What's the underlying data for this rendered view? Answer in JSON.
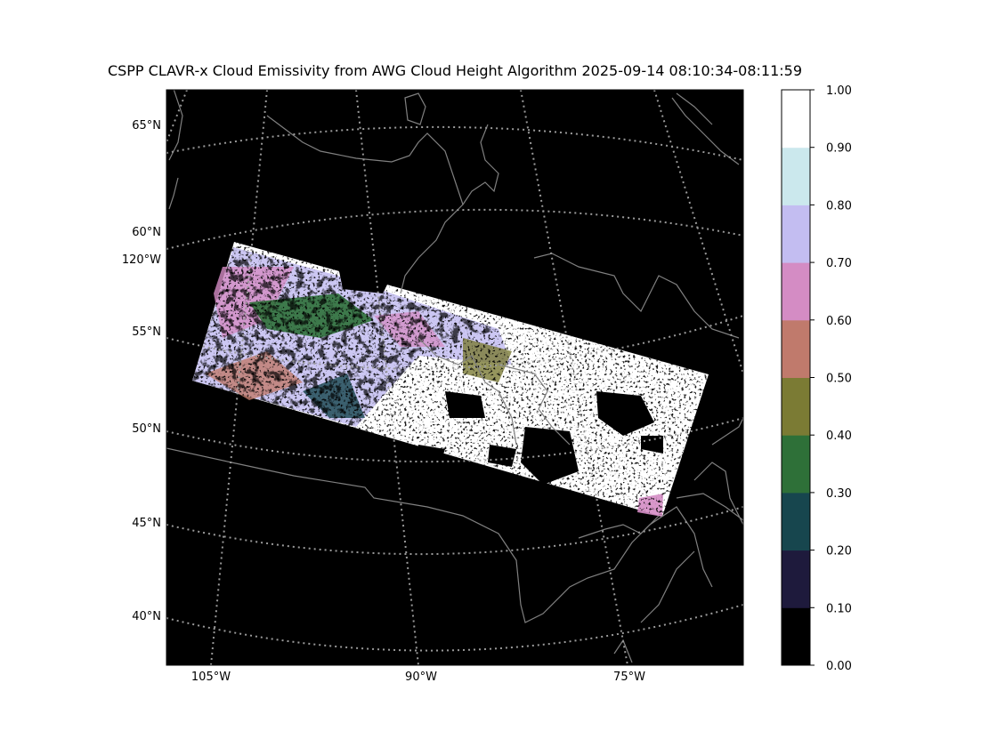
{
  "title": "CSPP CLAVR-x Cloud Emissivity from AWG Cloud Height Algorithm 2025-09-14 08:10:34-08:11:59",
  "map": {
    "lat_labels": [
      {
        "text": "65°N"
      },
      {
        "text": "60°N"
      },
      {
        "text": "55°N"
      },
      {
        "text": "50°N"
      },
      {
        "text": "45°N"
      },
      {
        "text": "40°N"
      }
    ],
    "lon_labels_left": [
      {
        "text": "120°W"
      }
    ],
    "lon_labels_bottom": [
      {
        "text": "105°W"
      },
      {
        "text": "90°W"
      },
      {
        "text": "75°W"
      }
    ],
    "background_color": "#000000",
    "coastline_color": "#808080",
    "gridline_color": "#9a9a9a",
    "gridline_style": "dotted"
  },
  "colorbar": {
    "range": [
      0.0,
      1.0
    ],
    "ticks": [
      "0.00",
      "0.10",
      "0.20",
      "0.30",
      "0.40",
      "0.50",
      "0.60",
      "0.70",
      "0.80",
      "0.90",
      "1.00"
    ],
    "colors": [
      "#000000",
      "#1e1a3c",
      "#17464e",
      "#2e7038",
      "#7b7b34",
      "#c07a6c",
      "#d48cc4",
      "#c3bdf1",
      "#cbe8ed",
      "#ffffff"
    ]
  }
}
